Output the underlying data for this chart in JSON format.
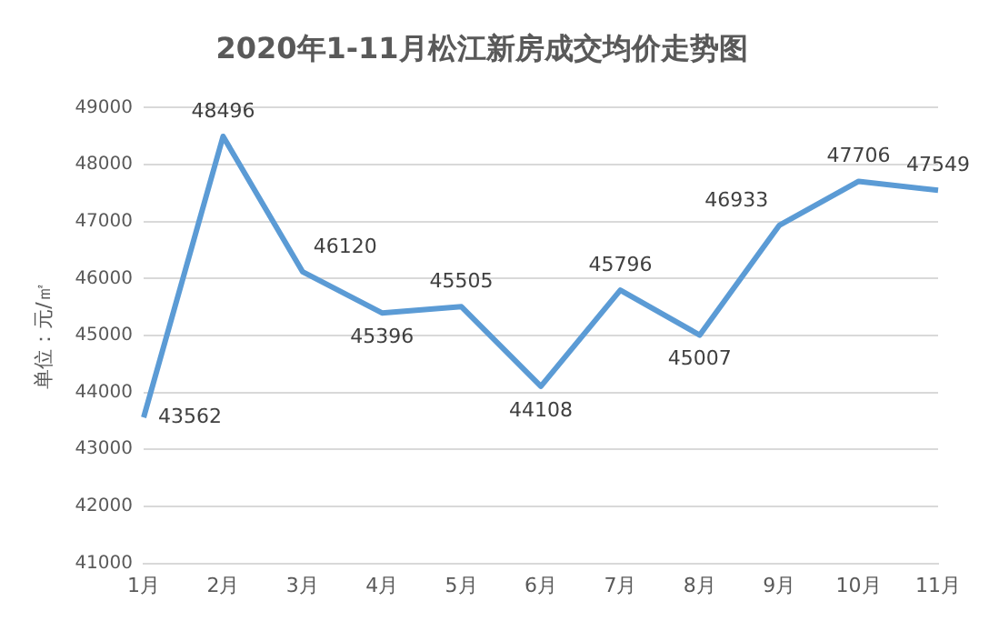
{
  "chart_data": {
    "type": "line",
    "title": "2020年1-11月松江新房成交均价走势图",
    "ylabel": "单位：元/㎡",
    "categories": [
      "1月",
      "2月",
      "3月",
      "4月",
      "5月",
      "6月",
      "7月",
      "8月",
      "9月",
      "10月",
      "11月"
    ],
    "series": [
      {
        "color": "#5b9bd5",
        "values": [
          43562,
          48496,
          46120,
          45396,
          45505,
          44108,
          45796,
          45007,
          46933,
          47706,
          47549
        ]
      }
    ],
    "ylim": [
      41000,
      49000
    ],
    "yticks": [
      41000,
      42000,
      43000,
      44000,
      45000,
      46000,
      47000,
      48000,
      49000
    ],
    "grid": "y",
    "legend": false,
    "marker": "none",
    "line_style": "solid",
    "data_labels": true
  }
}
